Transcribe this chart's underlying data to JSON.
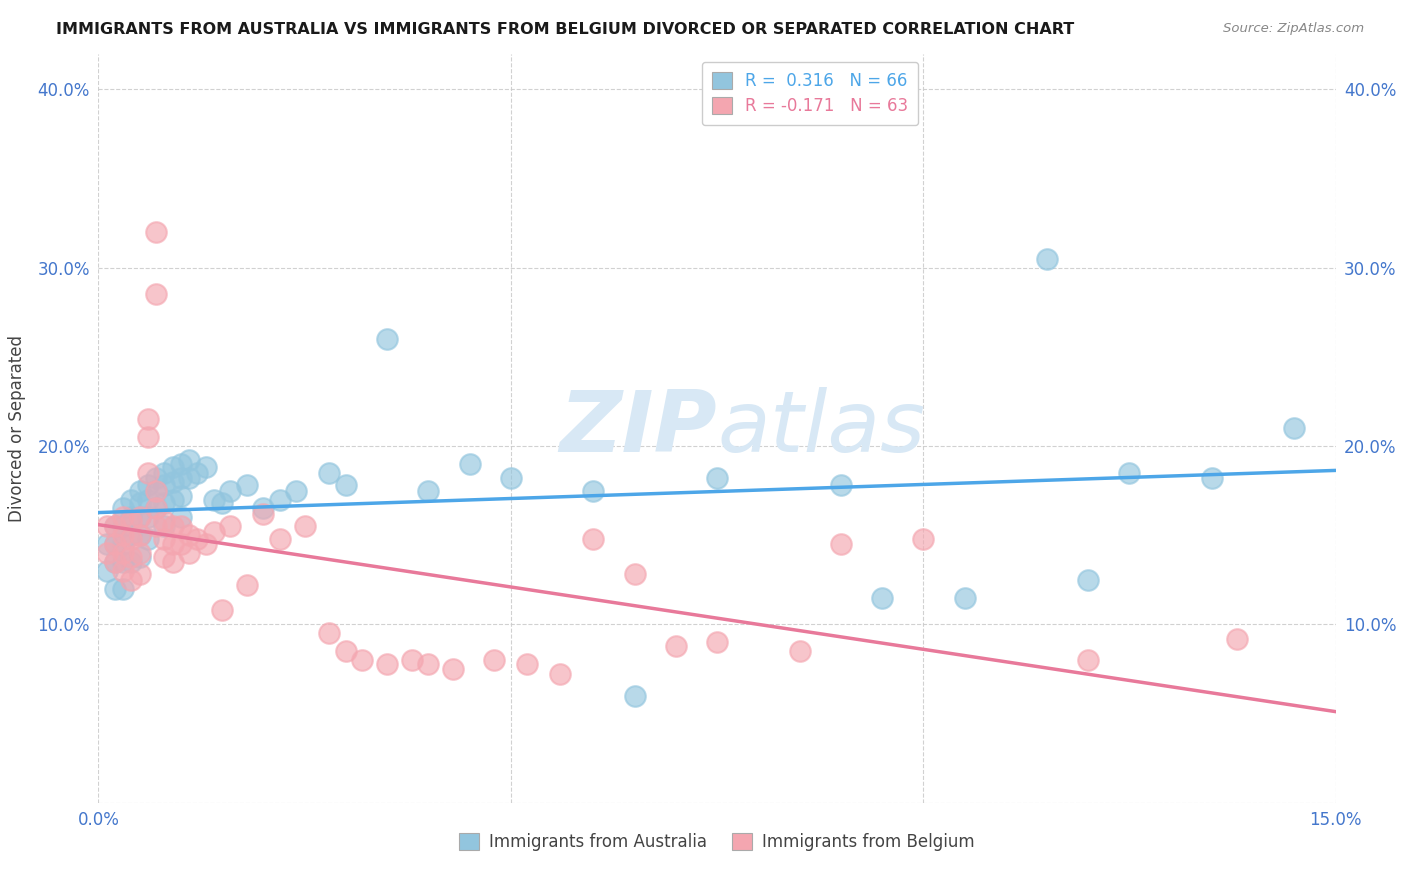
{
  "title": "IMMIGRANTS FROM AUSTRALIA VS IMMIGRANTS FROM BELGIUM DIVORCED OR SEPARATED CORRELATION CHART",
  "source": "Source: ZipAtlas.com",
  "ylabel": "Divorced or Separated",
  "xlim": [
    0.0,
    0.15
  ],
  "ylim": [
    0.0,
    0.42
  ],
  "xticks": [
    0.0,
    0.05,
    0.1,
    0.15
  ],
  "xtick_labels": [
    "0.0%",
    "",
    "",
    "15.0%"
  ],
  "yticks": [
    0.0,
    0.1,
    0.2,
    0.3,
    0.4
  ],
  "ytick_labels": [
    "",
    "10.0%",
    "20.0%",
    "30.0%",
    "40.0%"
  ],
  "australia_color": "#92c5de",
  "belgium_color": "#f4a6b0",
  "australia_line_color": "#4da6e8",
  "belgium_line_color": "#e8799a",
  "R_australia": 0.316,
  "N_australia": 66,
  "R_belgium": -0.171,
  "N_belgium": 63,
  "legend_label_australia": "Immigrants from Australia",
  "legend_label_belgium": "Immigrants from Belgium",
  "watermark_zip": "ZIP",
  "watermark_atlas": "atlas",
  "background_color": "#ffffff",
  "grid_color": "#cccccc",
  "title_color": "#1a1a1a",
  "tick_color": "#4477cc",
  "australia_x": [
    0.001,
    0.001,
    0.002,
    0.002,
    0.002,
    0.002,
    0.003,
    0.003,
    0.003,
    0.003,
    0.003,
    0.004,
    0.004,
    0.004,
    0.004,
    0.005,
    0.005,
    0.005,
    0.005,
    0.005,
    0.006,
    0.006,
    0.006,
    0.006,
    0.007,
    0.007,
    0.007,
    0.008,
    0.008,
    0.008,
    0.008,
    0.009,
    0.009,
    0.009,
    0.01,
    0.01,
    0.01,
    0.01,
    0.011,
    0.011,
    0.012,
    0.013,
    0.014,
    0.015,
    0.016,
    0.018,
    0.02,
    0.022,
    0.024,
    0.028,
    0.03,
    0.035,
    0.04,
    0.045,
    0.05,
    0.06,
    0.065,
    0.075,
    0.09,
    0.095,
    0.105,
    0.115,
    0.12,
    0.125,
    0.135,
    0.145
  ],
  "australia_y": [
    0.145,
    0.13,
    0.155,
    0.145,
    0.135,
    0.12,
    0.165,
    0.155,
    0.145,
    0.135,
    0.12,
    0.17,
    0.16,
    0.15,
    0.135,
    0.175,
    0.168,
    0.16,
    0.15,
    0.138,
    0.178,
    0.17,
    0.16,
    0.148,
    0.182,
    0.175,
    0.165,
    0.185,
    0.178,
    0.168,
    0.155,
    0.188,
    0.18,
    0.17,
    0.19,
    0.182,
    0.172,
    0.16,
    0.192,
    0.182,
    0.185,
    0.188,
    0.17,
    0.168,
    0.175,
    0.178,
    0.165,
    0.17,
    0.175,
    0.185,
    0.178,
    0.26,
    0.175,
    0.19,
    0.182,
    0.175,
    0.06,
    0.182,
    0.178,
    0.115,
    0.115,
    0.305,
    0.125,
    0.185,
    0.182,
    0.21
  ],
  "belgium_x": [
    0.001,
    0.001,
    0.002,
    0.002,
    0.002,
    0.003,
    0.003,
    0.003,
    0.003,
    0.004,
    0.004,
    0.004,
    0.004,
    0.005,
    0.005,
    0.005,
    0.005,
    0.006,
    0.006,
    0.006,
    0.007,
    0.007,
    0.007,
    0.007,
    0.007,
    0.008,
    0.008,
    0.008,
    0.009,
    0.009,
    0.009,
    0.01,
    0.01,
    0.011,
    0.011,
    0.012,
    0.013,
    0.014,
    0.015,
    0.016,
    0.018,
    0.02,
    0.022,
    0.025,
    0.028,
    0.03,
    0.032,
    0.035,
    0.038,
    0.04,
    0.043,
    0.048,
    0.052,
    0.056,
    0.06,
    0.065,
    0.07,
    0.075,
    0.085,
    0.09,
    0.1,
    0.12,
    0.138
  ],
  "belgium_y": [
    0.155,
    0.14,
    0.155,
    0.145,
    0.135,
    0.16,
    0.15,
    0.14,
    0.13,
    0.158,
    0.148,
    0.138,
    0.125,
    0.16,
    0.15,
    0.14,
    0.128,
    0.215,
    0.205,
    0.185,
    0.32,
    0.285,
    0.175,
    0.165,
    0.155,
    0.158,
    0.148,
    0.138,
    0.155,
    0.145,
    0.135,
    0.155,
    0.145,
    0.15,
    0.14,
    0.148,
    0.145,
    0.152,
    0.108,
    0.155,
    0.122,
    0.162,
    0.148,
    0.155,
    0.095,
    0.085,
    0.08,
    0.078,
    0.08,
    0.078,
    0.075,
    0.08,
    0.078,
    0.072,
    0.148,
    0.128,
    0.088,
    0.09,
    0.085,
    0.145,
    0.148,
    0.08,
    0.092
  ]
}
